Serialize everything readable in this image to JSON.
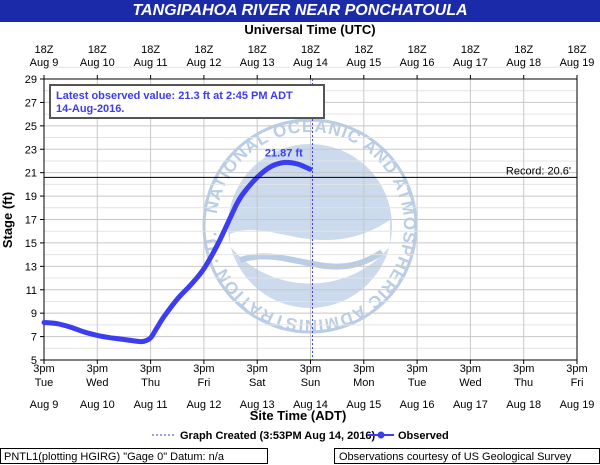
{
  "header": {
    "title": "TANGIPAHOA RIVER NEAR PONCHATOULA"
  },
  "chart_data": {
    "type": "line",
    "title": "TANGIPAHOA RIVER NEAR PONCHATOULA",
    "top_axis_label": "Universal Time (UTC)",
    "xlabel": "Site Time (ADT)",
    "ylabel": "Stage (ft)",
    "ylim": [
      5,
      29
    ],
    "y_ticks": [
      5,
      7,
      9,
      11,
      13,
      15,
      17,
      19,
      21,
      23,
      25,
      27,
      29
    ],
    "x_range": [
      "2016-08-09T15:00",
      "2016-08-19T15:00"
    ],
    "x_ticks": [
      {
        "t": "2016-08-09T15:00",
        "time": "3pm",
        "dow": "Tue",
        "date": "Aug 9",
        "utc_time": "18Z",
        "utc_date": "Aug  9"
      },
      {
        "t": "2016-08-10T15:00",
        "time": "3pm",
        "dow": "Wed",
        "date": "Aug 10",
        "utc_time": "18Z",
        "utc_date": "Aug 10"
      },
      {
        "t": "2016-08-11T15:00",
        "time": "3pm",
        "dow": "Thu",
        "date": "Aug 11",
        "utc_time": "18Z",
        "utc_date": "Aug 11"
      },
      {
        "t": "2016-08-12T15:00",
        "time": "3pm",
        "dow": "Fri",
        "date": "Aug 12",
        "utc_time": "18Z",
        "utc_date": "Aug 12"
      },
      {
        "t": "2016-08-13T15:00",
        "time": "3pm",
        "dow": "Sat",
        "date": "Aug 13",
        "utc_time": "18Z",
        "utc_date": "Aug 13"
      },
      {
        "t": "2016-08-14T15:00",
        "time": "3pm",
        "dow": "Sun",
        "date": "Aug 14",
        "utc_time": "18Z",
        "utc_date": "Aug 14"
      },
      {
        "t": "2016-08-15T15:00",
        "time": "3pm",
        "dow": "Mon",
        "date": "Aug 15",
        "utc_time": "18Z",
        "utc_date": "Aug 15"
      },
      {
        "t": "2016-08-16T15:00",
        "time": "3pm",
        "dow": "Tue",
        "date": "Aug 16",
        "utc_time": "18Z",
        "utc_date": "Aug 16"
      },
      {
        "t": "2016-08-17T15:00",
        "time": "3pm",
        "dow": "Wed",
        "date": "Aug 17",
        "utc_time": "18Z",
        "utc_date": "Aug 17"
      },
      {
        "t": "2016-08-18T15:00",
        "time": "3pm",
        "dow": "Thu",
        "date": "Aug 18",
        "utc_time": "18Z",
        "utc_date": "Aug 18"
      },
      {
        "t": "2016-08-19T15:00",
        "time": "3pm",
        "dow": "Fri",
        "date": "Aug 19",
        "utc_time": "18Z",
        "utc_date": "Aug 19"
      }
    ],
    "grid": true,
    "series": [
      {
        "name": "Observed",
        "color": "#3c3cf0",
        "points": [
          {
            "t": "2016-08-09T15:00",
            "y": 8.2
          },
          {
            "t": "2016-08-09T21:00",
            "y": 8.1
          },
          {
            "t": "2016-08-10T03:00",
            "y": 7.8
          },
          {
            "t": "2016-08-10T09:00",
            "y": 7.4
          },
          {
            "t": "2016-08-10T15:00",
            "y": 7.1
          },
          {
            "t": "2016-08-10T21:00",
            "y": 6.9
          },
          {
            "t": "2016-08-11T03:00",
            "y": 6.75
          },
          {
            "t": "2016-08-11T09:00",
            "y": 6.6
          },
          {
            "t": "2016-08-11T12:00",
            "y": 6.6
          },
          {
            "t": "2016-08-11T15:00",
            "y": 6.9
          },
          {
            "t": "2016-08-11T18:00",
            "y": 7.8
          },
          {
            "t": "2016-08-11T21:00",
            "y": 8.7
          },
          {
            "t": "2016-08-12T03:00",
            "y": 10.2
          },
          {
            "t": "2016-08-12T09:00",
            "y": 11.4
          },
          {
            "t": "2016-08-12T15:00",
            "y": 12.8
          },
          {
            "t": "2016-08-12T21:00",
            "y": 14.8
          },
          {
            "t": "2016-08-13T03:00",
            "y": 17.2
          },
          {
            "t": "2016-08-13T06:00",
            "y": 18.4
          },
          {
            "t": "2016-08-13T09:00",
            "y": 19.3
          },
          {
            "t": "2016-08-13T15:00",
            "y": 20.6
          },
          {
            "t": "2016-08-13T21:00",
            "y": 21.5
          },
          {
            "t": "2016-08-14T03:00",
            "y": 21.87
          },
          {
            "t": "2016-08-14T09:00",
            "y": 21.75
          },
          {
            "t": "2016-08-14T14:45",
            "y": 21.3
          }
        ]
      }
    ],
    "record": {
      "value": 20.6,
      "label": "Record: 20.6'"
    },
    "peak_label": {
      "t": "2016-08-14T03:00",
      "y": 21.87,
      "text": "21.87 ft"
    },
    "graph_created": {
      "t": "2016-08-14T15:53"
    },
    "latest_box": {
      "line1": "Latest observed value: 21.3 ft at 2:45 PM ADT",
      "line2": "14-Aug-2016."
    },
    "legend": {
      "graph_created_label": "Graph Created (3:53PM Aug 14, 2016)",
      "observed_label": "Observed",
      "position": "bottom"
    },
    "watermark_text": "NATIONAL OCEANIC AND ATMOSPHERIC ADMINISTRATION · U.S. DEPARTMENT OF COMMERCE · NOAA"
  },
  "footer": {
    "left": "PNTL1(plotting HGIRG) \"Gage 0\" Datum: n/a",
    "right": "Observations courtesy of US Geological Survey"
  },
  "colors": {
    "title_bar": "#1b2aa8",
    "plot_background": "#ffffff",
    "grid": "#c8c8c8",
    "series": "#3c3cf0",
    "watermark": "#b9cde6"
  }
}
